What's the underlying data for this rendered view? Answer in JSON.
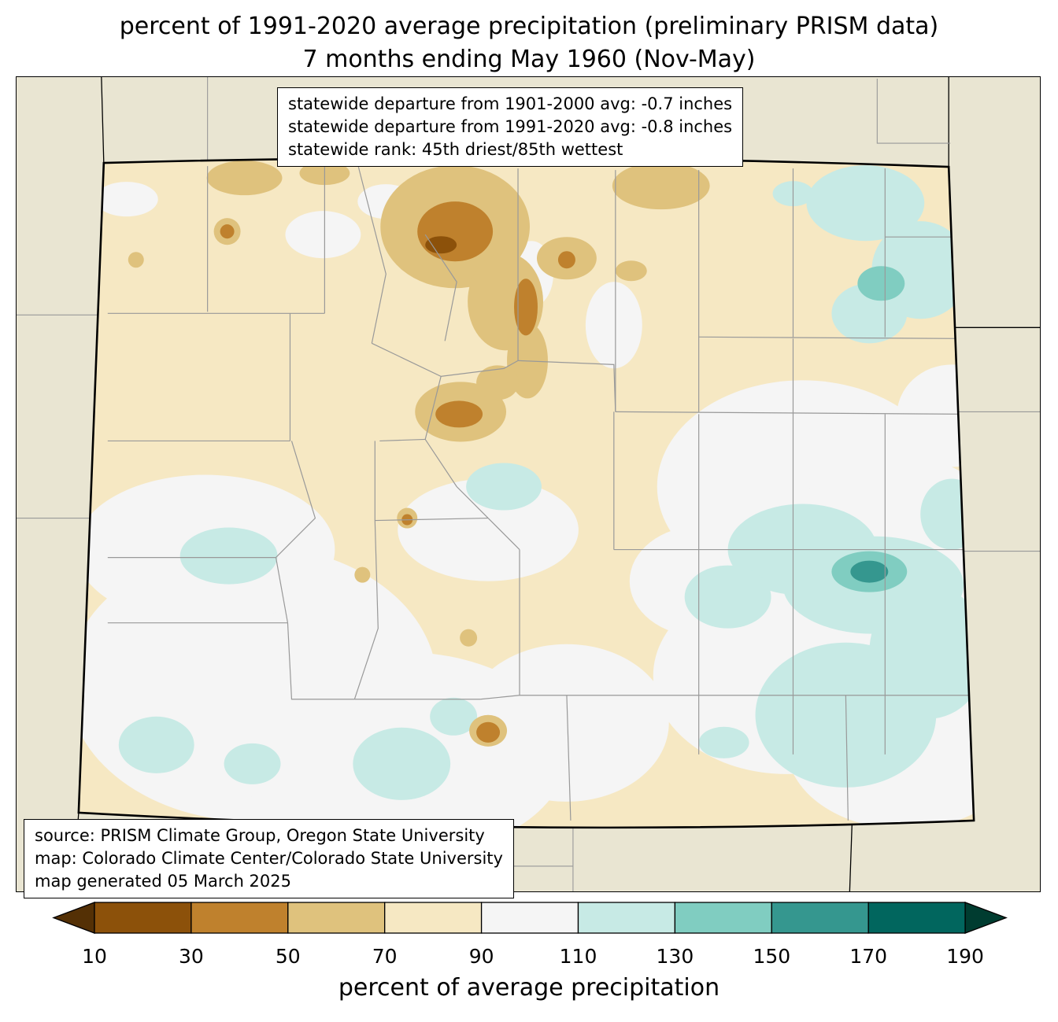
{
  "title": {
    "line1": "percent of 1991-2020 average precipitation (preliminary PRISM data)",
    "line2": "7 months ending May 1960 (Nov-May)"
  },
  "stats_box": {
    "line1": "statewide departure from 1901-2000 avg: -0.7 inches",
    "line2": "statewide departure from 1991-2020 avg: -0.8 inches",
    "line3": "statewide rank: 45th driest/85th wettest"
  },
  "source_box": {
    "line1": "source: PRISM Climate Group, Oregon State University",
    "line2": "map: Colorado Climate Center/Colorado State University",
    "line3": "map generated 05 March 2025"
  },
  "colorbar": {
    "label": "percent of average precipitation",
    "ticks": [
      "10",
      "30",
      "50",
      "70",
      "90",
      "110",
      "130",
      "150",
      "170",
      "190"
    ],
    "under_arrow_color": "#543005",
    "over_arrow_color": "#003c30",
    "segment_colors": [
      "#8c510a",
      "#bf812d",
      "#dfc27d",
      "#f6e8c3",
      "#f5f5f5",
      "#c7eae5",
      "#80cdc1",
      "#35978f",
      "#01665e"
    ]
  },
  "map_colors": {
    "outside_state_bg": "#e9e5d2",
    "base_70_90": "#f6e8c3",
    "white_90_110": "#f5f5f5",
    "teal_110_130": "#c7eae5",
    "teal_130_150": "#80cdc1",
    "teal_150_170": "#35978f",
    "tan_50_70": "#dfc27d",
    "brown_30_50": "#bf812d",
    "brown_10_30": "#8c510a",
    "county_line": "#999999",
    "state_border": "#000000"
  }
}
